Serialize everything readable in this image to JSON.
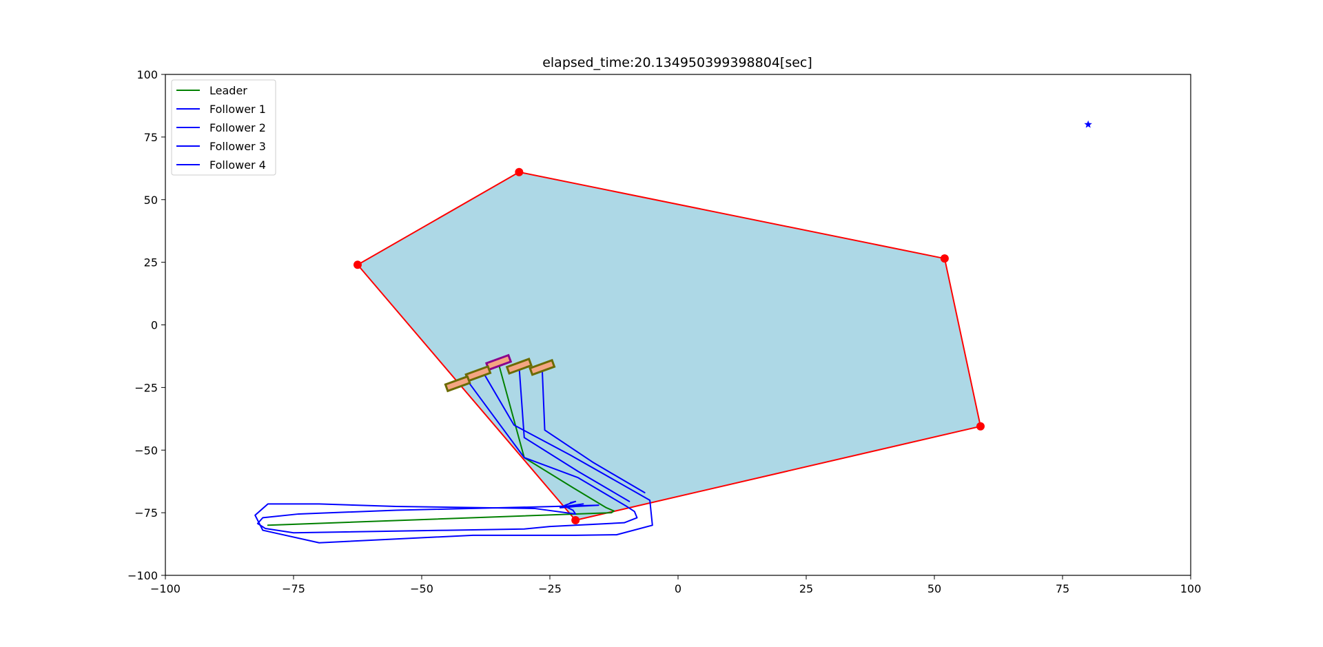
{
  "chart_data": {
    "type": "line",
    "title": "elapsed_time:20.134950399398804[sec]",
    "xlabel": "",
    "ylabel": "",
    "xlim": [
      -100,
      100
    ],
    "ylim": [
      -100,
      100
    ],
    "xticks": [
      -100,
      -75,
      -50,
      -25,
      0,
      25,
      50,
      75,
      100
    ],
    "yticks": [
      -100,
      -75,
      -50,
      -25,
      0,
      25,
      50,
      75,
      100
    ],
    "xtick_labels": [
      "−100",
      "−75",
      "−50",
      "−25",
      "0",
      "25",
      "50",
      "75",
      "100"
    ],
    "ytick_labels": [
      "−100",
      "−75",
      "−50",
      "−25",
      "0",
      "25",
      "50",
      "75",
      "100"
    ],
    "grid": false,
    "legend": {
      "placement": "top-left",
      "entries": [
        {
          "label": "Leader",
          "color": "#008000"
        },
        {
          "label": "Follower 1",
          "color": "#0000ff"
        },
        {
          "label": "Follower 2",
          "color": "#0000ff"
        },
        {
          "label": "Follower 3",
          "color": "#0000ff"
        },
        {
          "label": "Follower 4",
          "color": "#0000ff"
        }
      ]
    },
    "region": {
      "fill_color": "#add8e6",
      "edge_color": "#ff0000",
      "vertices": [
        [
          -31,
          61
        ],
        [
          52,
          26.5
        ],
        [
          59,
          -40.5
        ],
        [
          -20,
          -78
        ],
        [
          -62.5,
          24
        ]
      ]
    },
    "goal": {
      "x": 80,
      "y": 80,
      "color": "#0000ff",
      "marker": "star"
    },
    "series": [
      {
        "color": "#008000",
        "points": [
          [
            -80,
            -80
          ],
          [
            -20,
            -75.5
          ],
          [
            -13,
            -75
          ],
          [
            -12.5,
            -74.3
          ],
          [
            -14,
            -73
          ],
          [
            -20.5,
            -65
          ],
          [
            -30,
            -53
          ],
          [
            -35,
            -15.5
          ]
        ]
      },
      {
        "color": "#0000ff",
        "points": [
          [
            -21,
            -71
          ],
          [
            -20,
            -70.5
          ],
          [
            -22,
            -72
          ],
          [
            -23,
            -73
          ],
          [
            -21.5,
            -72.8
          ],
          [
            -20,
            -72.5
          ],
          [
            -15.5,
            -72
          ],
          [
            -24,
            -72.5
          ],
          [
            -55,
            -74
          ],
          [
            -74,
            -75.5
          ],
          [
            -81,
            -77
          ],
          [
            -82,
            -79.3
          ],
          [
            -80.5,
            -81.3
          ],
          [
            -75,
            -83
          ],
          [
            -45,
            -82
          ],
          [
            -30,
            -81.5
          ],
          [
            -25,
            -80.5
          ],
          [
            -20,
            -80
          ],
          [
            -10.5,
            -79
          ],
          [
            -8,
            -77
          ],
          [
            -8.5,
            -74.5
          ],
          [
            -10,
            -72.5
          ],
          [
            -19.5,
            -61
          ],
          [
            -30,
            -53
          ],
          [
            -41,
            -22.5
          ]
        ]
      },
      {
        "color": "#0000ff",
        "points": [
          [
            -18.5,
            -71.5
          ],
          [
            -22,
            -72.5
          ],
          [
            -20.5,
            -74
          ],
          [
            -20,
            -75.5
          ],
          [
            -28,
            -73.3
          ],
          [
            -55,
            -72.5
          ],
          [
            -70,
            -71.5
          ],
          [
            -80,
            -71.5
          ],
          [
            -82.5,
            -76
          ],
          [
            -81,
            -82
          ],
          [
            -70,
            -87
          ],
          [
            -40,
            -84
          ],
          [
            -28,
            -84
          ],
          [
            -25,
            -84
          ],
          [
            -20,
            -84
          ],
          [
            -12,
            -83.8
          ],
          [
            -5,
            -80
          ],
          [
            -5.5,
            -70
          ],
          [
            -21,
            -52
          ],
          [
            -32,
            -40
          ],
          [
            -38,
            -19
          ]
        ]
      },
      {
        "color": "#0000ff",
        "points": [
          [
            -9.5,
            -70.5
          ],
          [
            -19.5,
            -58.5
          ],
          [
            -30,
            -45
          ],
          [
            -31,
            -16.5
          ]
        ]
      },
      {
        "color": "#0000ff",
        "points": [
          [
            -6.5,
            -67
          ],
          [
            -16.5,
            -55
          ],
          [
            -26,
            -42
          ],
          [
            -26.5,
            -17.5
          ]
        ]
      }
    ],
    "agents": [
      {
        "x": -35,
        "y": -15,
        "edge": "#8b008b"
      },
      {
        "x": -39,
        "y": -19.5,
        "edge": "#6b6b00"
      },
      {
        "x": -43,
        "y": -23.5,
        "edge": "#6b6b00"
      },
      {
        "x": -31,
        "y": -16.5,
        "edge": "#6b6b00"
      },
      {
        "x": -26.5,
        "y": -17,
        "edge": "#6b6b00"
      }
    ]
  }
}
